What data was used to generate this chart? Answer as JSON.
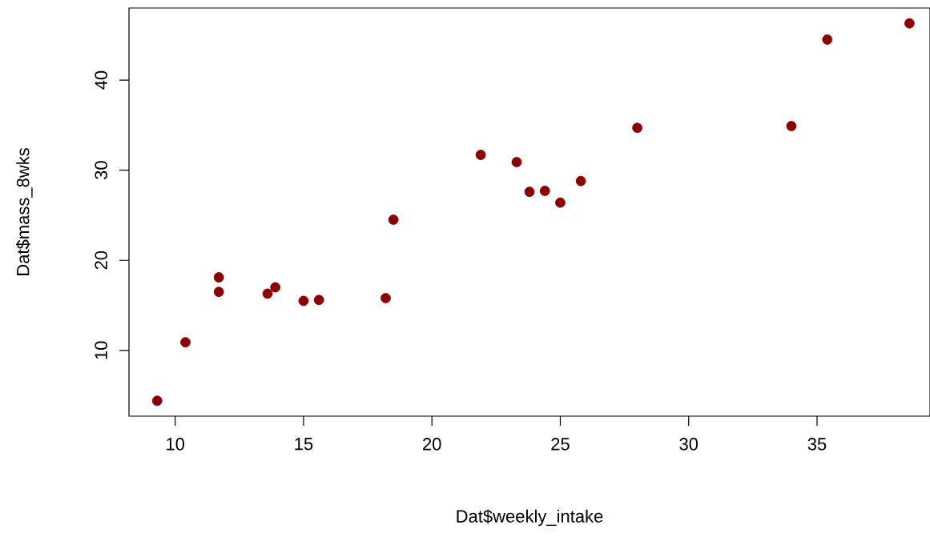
{
  "chart_data": {
    "type": "scatter",
    "xlabel": "Dat$weekly_intake",
    "ylabel": "Dat$mass_8wks",
    "x": [
      9.3,
      10.4,
      11.7,
      11.7,
      13.6,
      13.9,
      15.0,
      15.6,
      18.2,
      18.5,
      21.9,
      23.3,
      23.8,
      24.4,
      25.0,
      25.8,
      28.0,
      34.0,
      35.4,
      38.6
    ],
    "values": [
      4.4,
      10.9,
      18.1,
      16.5,
      16.3,
      17.0,
      15.5,
      15.6,
      15.8,
      24.5,
      31.7,
      30.9,
      27.6,
      27.7,
      26.4,
      28.8,
      34.7,
      34.9,
      44.5,
      46.3
    ],
    "color": "#8b0000",
    "marker": "circle",
    "grid": false,
    "xlim": [
      8.2,
      39.4
    ],
    "ylim": [
      2.7,
      48.0
    ],
    "xticks": [
      10,
      15,
      20,
      25,
      30,
      35
    ],
    "yticks": [
      10,
      20,
      30,
      40
    ]
  }
}
